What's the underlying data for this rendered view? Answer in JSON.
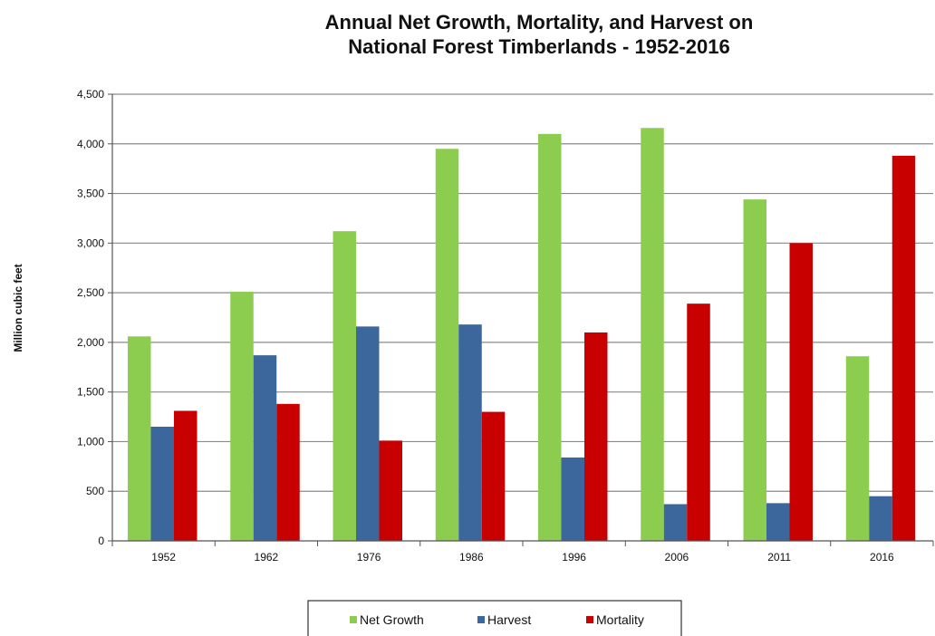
{
  "chart_data": {
    "type": "bar",
    "title": "Annual Net Growth, Mortality, and Harvest on National Forest Timberlands - 1952-2016",
    "title_lines": [
      "Annual Net Growth, Mortality, and Harvest on",
      "National Forest Timberlands - 1952-2016"
    ],
    "xlabel": "",
    "ylabel": "Million cubic feet",
    "categories": [
      "1952",
      "1962",
      "1976",
      "1986",
      "1996",
      "2006",
      "2011",
      "2016"
    ],
    "series": [
      {
        "name": "Net Growth",
        "color": "#8ccd4f",
        "values": [
          2060,
          2510,
          3120,
          3950,
          4100,
          4160,
          3440,
          1860
        ]
      },
      {
        "name": "Harvest",
        "color": "#3c679c",
        "values": [
          1150,
          1870,
          2160,
          2180,
          840,
          370,
          380,
          450
        ]
      },
      {
        "name": "Mortality",
        "color": "#c80000",
        "values": [
          1310,
          1380,
          1010,
          1300,
          2100,
          2390,
          3000,
          3880
        ]
      }
    ],
    "ylim": [
      0,
      4500
    ],
    "yticks": [
      0,
      500,
      1000,
      1500,
      2000,
      2500,
      3000,
      3500,
      4000,
      4500
    ],
    "ytick_labels": [
      "0",
      "500",
      "1,000",
      "1,500",
      "2,000",
      "2,500",
      "3,000",
      "3,500",
      "4,000",
      "4,500"
    ],
    "grid": true,
    "legend_position": "bottom"
  }
}
